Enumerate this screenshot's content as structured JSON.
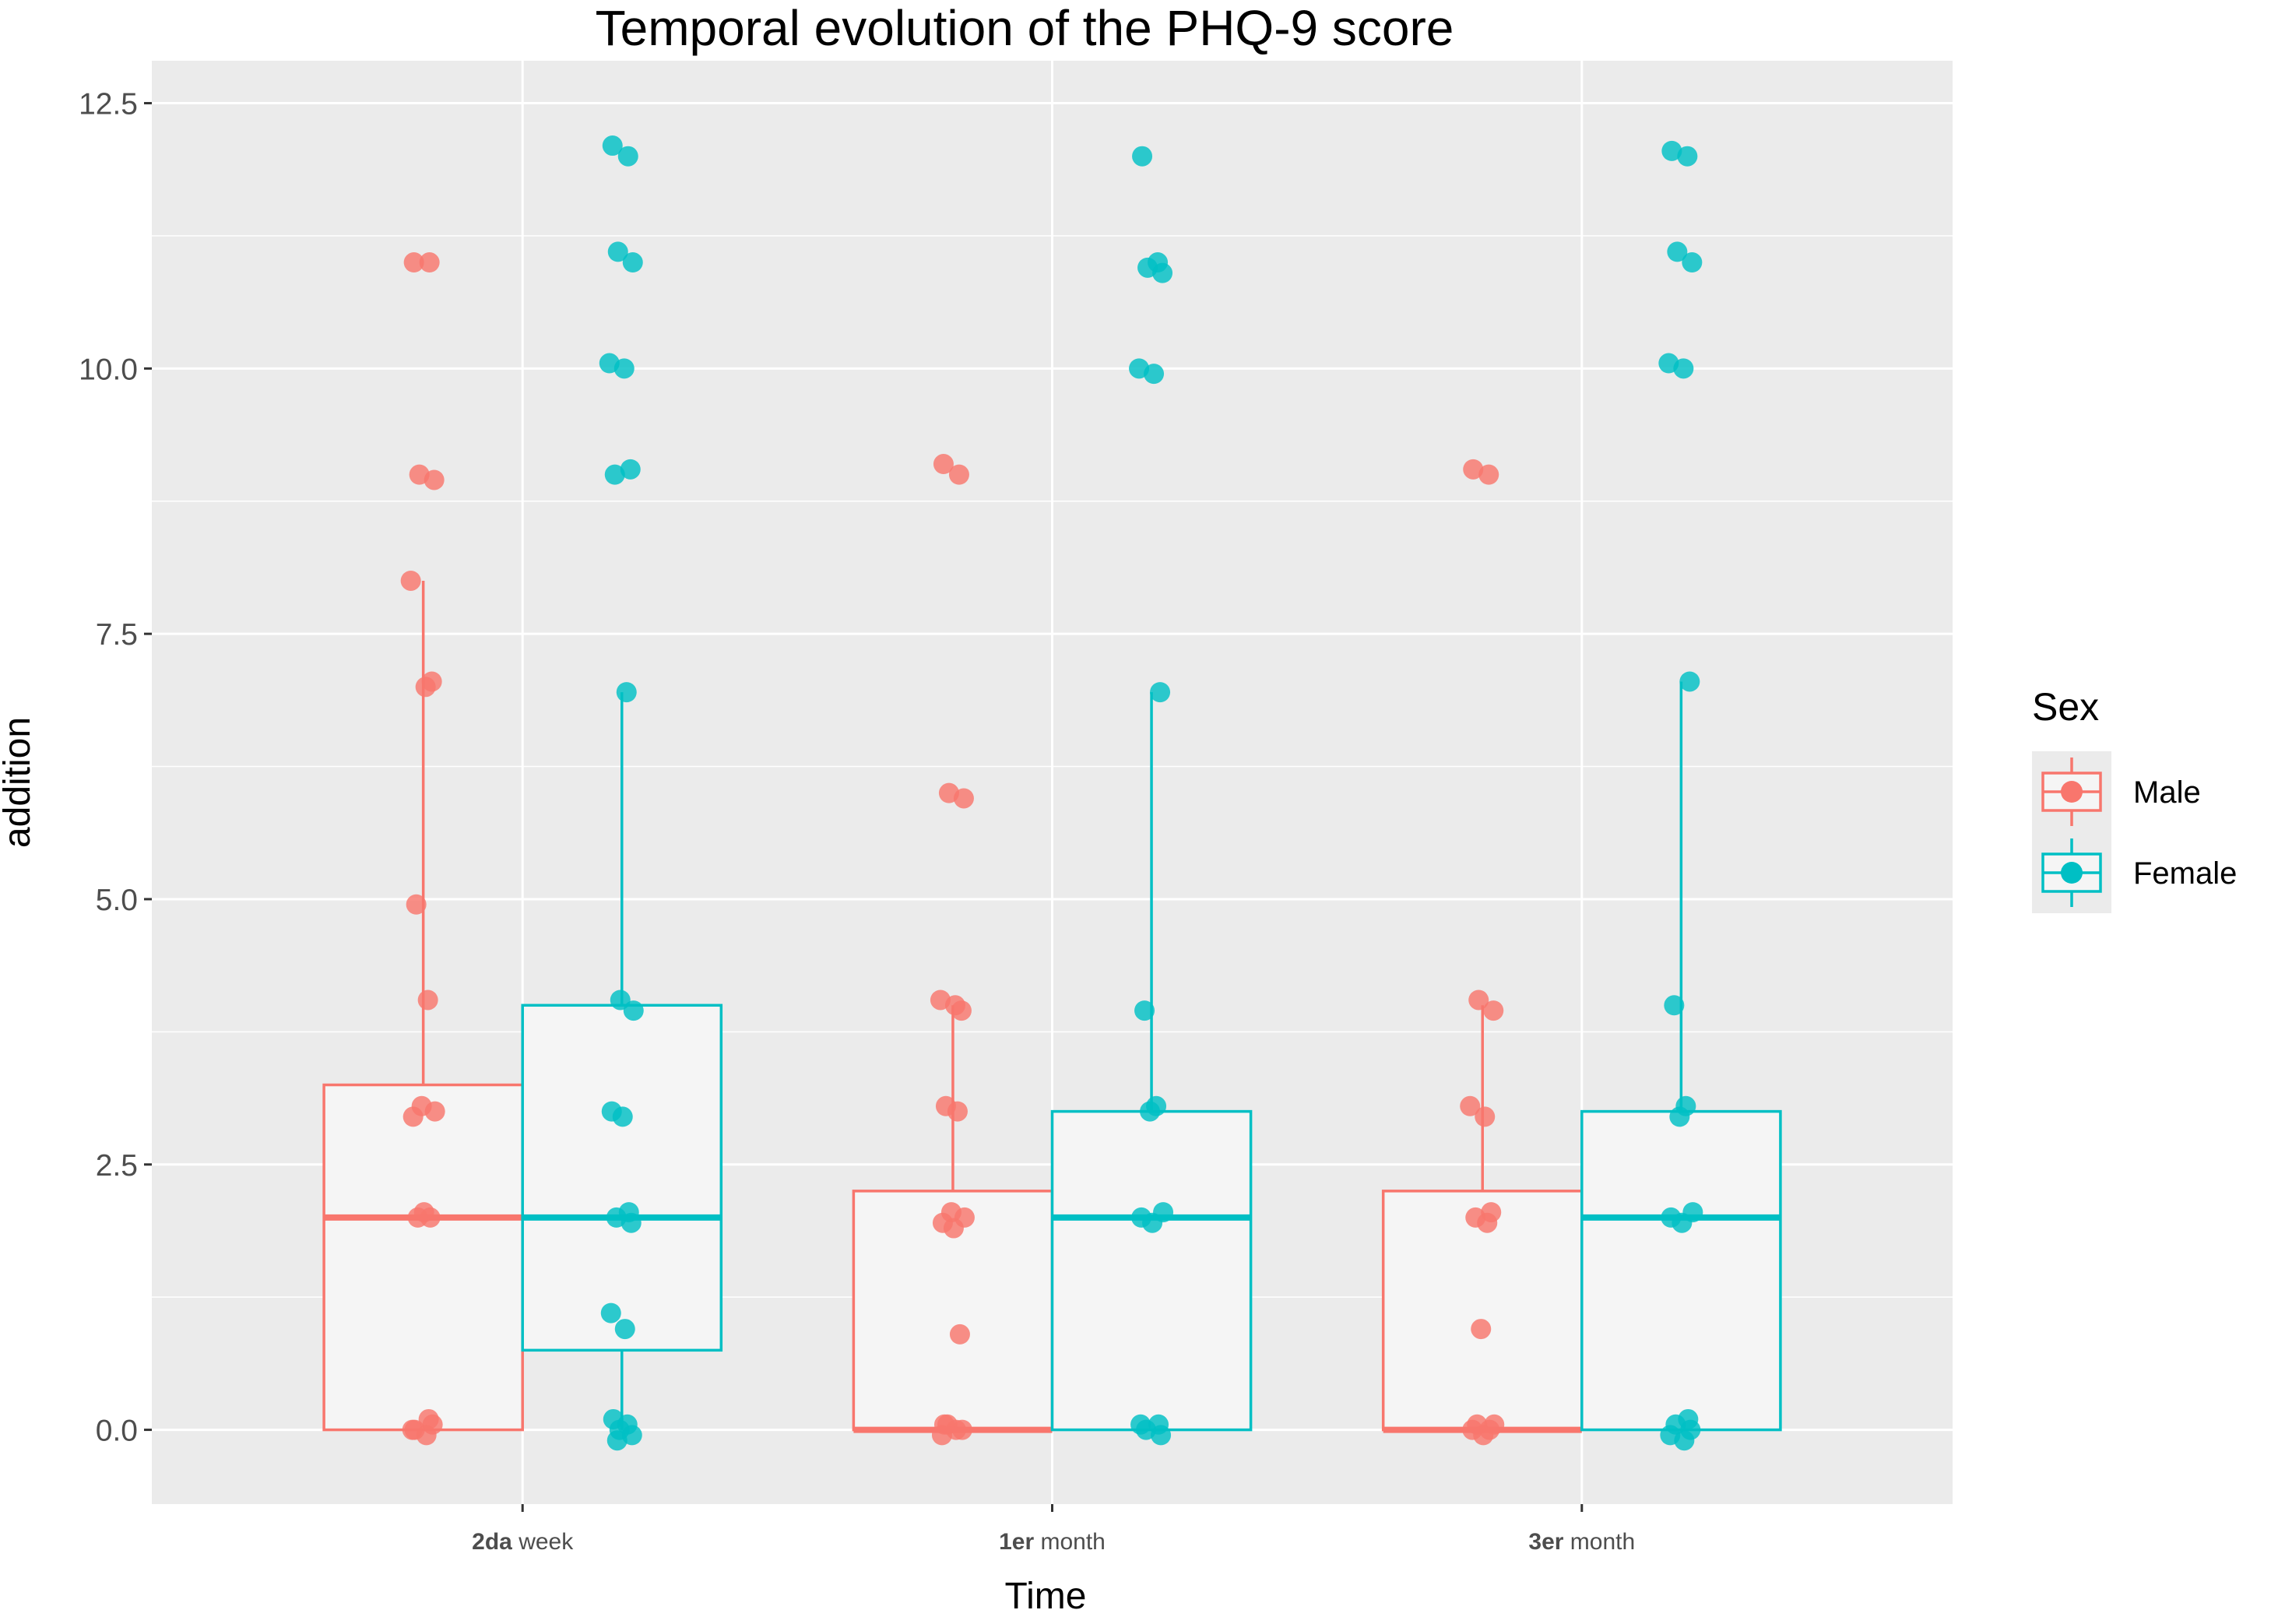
{
  "chart_data": {
    "type": "boxplot",
    "title": "Temporal evolution of the PHQ-9 score",
    "xlabel": "Time",
    "ylabel": "addition",
    "ylim": [
      -0.7,
      12.9
    ],
    "yticks": [
      0.0,
      2.5,
      5.0,
      7.5,
      10.0,
      12.5
    ],
    "ytick_labels": [
      "0.0",
      "2.5",
      "5.0",
      "7.5",
      "10.0",
      "12.5"
    ],
    "grid": true,
    "categories": [
      {
        "prefix": "2da",
        "suffix": " week"
      },
      {
        "prefix": "1er",
        "suffix": " month"
      },
      {
        "prefix": "3er",
        "suffix": " month"
      }
    ],
    "legend": {
      "title": "Sex",
      "position": "right",
      "entries": [
        {
          "label": "Male",
          "color": "#F8766D"
        },
        {
          "label": "Female",
          "color": "#00BFC4"
        }
      ]
    },
    "series": [
      {
        "name": "Male",
        "color": "#F8766D",
        "boxes": [
          {
            "q1": 0,
            "median": 2,
            "q3": 3.25,
            "whisker_low": 0,
            "whisker_high": 8,
            "points": [
              11,
              11,
              9,
              8.95,
              8,
              7,
              7.05,
              4.95,
              4.05,
              3.05,
              3,
              2.95,
              2.05,
              2,
              2,
              0.05,
              0,
              -0.05,
              0,
              0.1
            ]
          },
          {
            "q1": 0,
            "median": 0,
            "q3": 2.25,
            "whisker_low": 0,
            "whisker_high": 4,
            "points": [
              9.1,
              9,
              6,
              5.95,
              4.05,
              4,
              3.95,
              3.05,
              3,
              2.05,
              2,
              1.95,
              1.9,
              0.9,
              0.05,
              0,
              -0.05,
              0,
              0.05
            ]
          },
          {
            "q1": 0,
            "median": 0,
            "q3": 2.25,
            "whisker_low": 0,
            "whisker_high": 4,
            "points": [
              9.05,
              9,
              4.05,
              3.95,
              3.05,
              2.95,
              2.05,
              2,
              1.95,
              0.95,
              0.05,
              0,
              -0.05,
              0,
              0.05
            ]
          }
        ]
      },
      {
        "name": "Female",
        "color": "#00BFC4",
        "boxes": [
          {
            "q1": 0.75,
            "median": 2,
            "q3": 4,
            "whisker_low": 0,
            "whisker_high": 6.95,
            "points": [
              12.1,
              12,
              11.1,
              11,
              10.05,
              10,
              9.05,
              9,
              6.95,
              4.05,
              3.95,
              3,
              2.95,
              2.05,
              2,
              1.95,
              1.1,
              0.95,
              0.1,
              0.05,
              0,
              -0.05,
              -0.1
            ]
          },
          {
            "q1": 0,
            "median": 2,
            "q3": 3,
            "whisker_low": 0,
            "whisker_high": 6.95,
            "points": [
              12,
              11,
              10.95,
              10.9,
              10,
              9.95,
              6.95,
              3.95,
              3.05,
              3,
              2.05,
              2,
              1.95,
              0.05,
              0,
              -0.05,
              0.05
            ]
          },
          {
            "q1": 0,
            "median": 2,
            "q3": 3,
            "whisker_low": 0,
            "whisker_high": 7.05,
            "points": [
              12.05,
              12,
              11.1,
              11,
              10.05,
              10,
              7.05,
              4,
              3.05,
              2.95,
              2.05,
              2,
              1.95,
              0.1,
              0.05,
              0,
              -0.05,
              -0.1
            ]
          }
        ]
      }
    ]
  }
}
